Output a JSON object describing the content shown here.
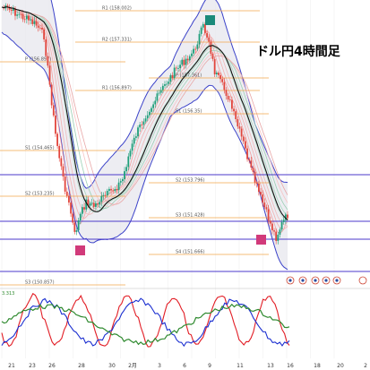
{
  "chart_data": {
    "type": "line",
    "title": "ドル円4時間足",
    "indicator_value_label": "3.313",
    "colors": {
      "candle_up": "#1f9e7a",
      "candle_down": "#e2453c",
      "pivot_line": "#f2a64b",
      "support_resistance": "#4b3acb",
      "band_outer": "#3c43c9",
      "band_fill": "#e9e9ef",
      "ma_main": "#111111",
      "osc_red": "#e21d25",
      "osc_blue": "#1a2ed0",
      "osc_green": "#2f8a2f",
      "marker_teal": "#1a8a7a",
      "marker_pink": "#d13a7a"
    },
    "pivot_levels": [
      {
        "label": "R1 (158.002)"
      },
      {
        "label": "R2 (157.331)"
      },
      {
        "label": "P (156.897)"
      },
      {
        "label": "R1 (156.897)"
      },
      {
        "label": "S1 (154.465)"
      },
      {
        "label": "S2 (153.235)"
      },
      {
        "label": "P (157.361)"
      },
      {
        "label": "S1 (156.35)"
      },
      {
        "label": "S2 (153.796)"
      },
      {
        "label": "S3 (151.428)"
      },
      {
        "label": "S4 (151.666)"
      },
      {
        "label": "S3 (150.857)"
      }
    ],
    "x_ticks": [
      "21",
      "23",
      "26",
      "28",
      "30",
      "2月",
      "3",
      "6",
      "9",
      "11",
      "13",
      "16",
      "18",
      "20",
      "2"
    ]
  }
}
